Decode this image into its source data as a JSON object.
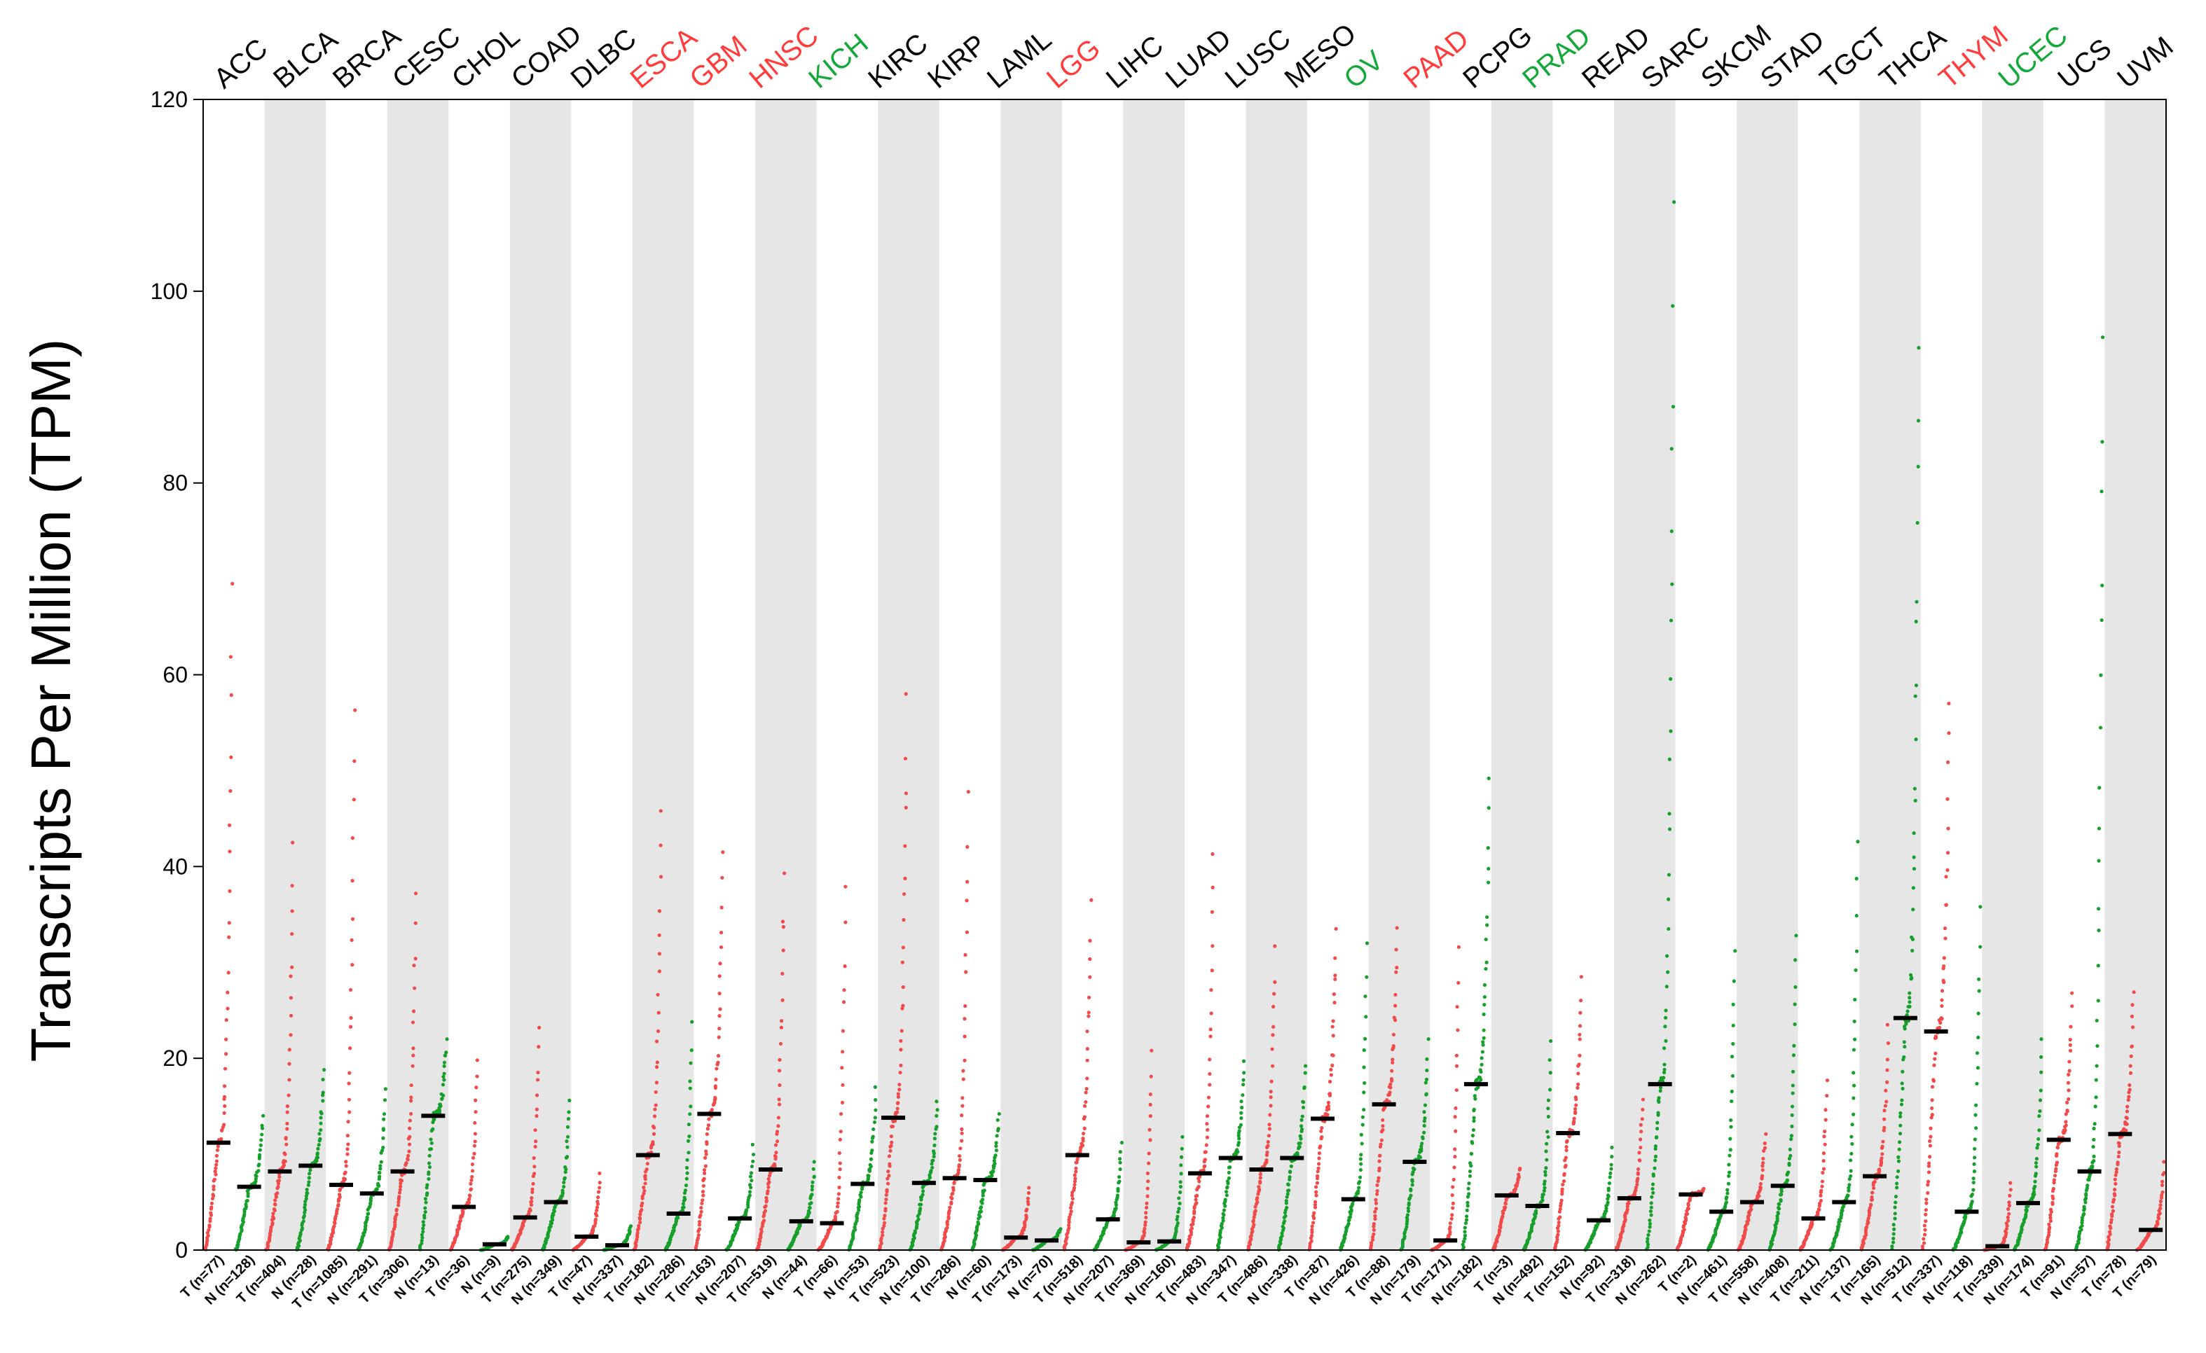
{
  "colors": {
    "tumor": "#f04a4a",
    "normal": "#16a02b",
    "shade": "#e6e6e6",
    "median": "#000000",
    "label_black": "#000000",
    "label_red": "#ff3b3b",
    "label_green": "#14a83a"
  },
  "chart_data": {
    "type": "scatter",
    "subtype": "dot plot of sample expression with median bars, tumor (red) vs normal (green)",
    "ylabel": "Transcripts Per Million (TPM)",
    "ylim": [
      0,
      120
    ],
    "yticks": [
      0,
      20,
      40,
      60,
      80,
      100,
      120
    ],
    "grid": false,
    "cancers": [
      {
        "name": "ACC",
        "color": "black"
      },
      {
        "name": "BLCA",
        "color": "black"
      },
      {
        "name": "BRCA",
        "color": "black"
      },
      {
        "name": "CESC",
        "color": "black"
      },
      {
        "name": "CHOL",
        "color": "black"
      },
      {
        "name": "COAD",
        "color": "black"
      },
      {
        "name": "DLBC",
        "color": "black"
      },
      {
        "name": "ESCA",
        "color": "red"
      },
      {
        "name": "GBM",
        "color": "red"
      },
      {
        "name": "HNSC",
        "color": "red"
      },
      {
        "name": "KICH",
        "color": "green"
      },
      {
        "name": "KIRC",
        "color": "black"
      },
      {
        "name": "KIRP",
        "color": "black"
      },
      {
        "name": "LAML",
        "color": "black"
      },
      {
        "name": "LGG",
        "color": "red"
      },
      {
        "name": "LIHC",
        "color": "black"
      },
      {
        "name": "LUAD",
        "color": "black"
      },
      {
        "name": "LUSC",
        "color": "black"
      },
      {
        "name": "MESO",
        "color": "black"
      },
      {
        "name": "OV",
        "color": "green"
      },
      {
        "name": "PAAD",
        "color": "red"
      },
      {
        "name": "PCPG",
        "color": "black"
      },
      {
        "name": "PRAD",
        "color": "green"
      },
      {
        "name": "READ",
        "color": "black"
      },
      {
        "name": "SARC",
        "color": "black"
      },
      {
        "name": "SKCM",
        "color": "black"
      },
      {
        "name": "STAD",
        "color": "black"
      },
      {
        "name": "TGCT",
        "color": "black"
      },
      {
        "name": "THCA",
        "color": "black"
      },
      {
        "name": "THYM",
        "color": "red"
      },
      {
        "name": "UCEC",
        "color": "green"
      },
      {
        "name": "UCS",
        "color": "black"
      },
      {
        "name": "UVM",
        "color": "black"
      }
    ],
    "groups": [
      {
        "label": "T (n=77)",
        "type": "T",
        "median": 11.2,
        "max": 69.5
      },
      {
        "label": "N (n=128)",
        "type": "N",
        "median": 6.6,
        "max": 14.0
      },
      {
        "label": "T (n=404)",
        "type": "T",
        "median": 8.2,
        "max": 42.5
      },
      {
        "label": "N (n=28)",
        "type": "N",
        "median": 8.8,
        "max": 18.8
      },
      {
        "label": "T (n=1085)",
        "type": "T",
        "median": 6.8,
        "max": 56.3
      },
      {
        "label": "N (n=291)",
        "type": "N",
        "median": 5.9,
        "max": 16.8
      },
      {
        "label": "T (n=306)",
        "type": "T",
        "median": 8.2,
        "max": 37.2
      },
      {
        "label": "N (n=13)",
        "type": "N",
        "median": 14.0,
        "max": 22.0
      },
      {
        "label": "T (n=36)",
        "type": "T",
        "median": 4.5,
        "max": 19.8
      },
      {
        "label": "N (n=9)",
        "type": "N",
        "median": 0.6,
        "max": 1.4
      },
      {
        "label": "T (n=275)",
        "type": "T",
        "median": 3.4,
        "max": 23.2
      },
      {
        "label": "N (n=349)",
        "type": "N",
        "median": 5.0,
        "max": 15.6
      },
      {
        "label": "T (n=47)",
        "type": "T",
        "median": 1.4,
        "max": 8.0
      },
      {
        "label": "N (n=337)",
        "type": "N",
        "median": 0.5,
        "max": 2.5
      },
      {
        "label": "T (n=182)",
        "type": "T",
        "median": 9.9,
        "max": 45.8
      },
      {
        "label": "N (n=286)",
        "type": "N",
        "median": 3.8,
        "max": 23.8
      },
      {
        "label": "T (n=163)",
        "type": "T",
        "median": 14.2,
        "max": 41.5
      },
      {
        "label": "N (n=207)",
        "type": "N",
        "median": 3.3,
        "max": 11.0
      },
      {
        "label": "T (n=519)",
        "type": "T",
        "median": 8.4,
        "max": 39.3
      },
      {
        "label": "N (n=44)",
        "type": "N",
        "median": 3.0,
        "max": 9.2
      },
      {
        "label": "T (n=66)",
        "type": "T",
        "median": 2.8,
        "max": 37.9
      },
      {
        "label": "N (n=53)",
        "type": "N",
        "median": 6.9,
        "max": 17.0
      },
      {
        "label": "T (n=523)",
        "type": "T",
        "median": 13.8,
        "max": 58.0
      },
      {
        "label": "N (n=100)",
        "type": "N",
        "median": 7.0,
        "max": 15.5
      },
      {
        "label": "T (n=286)",
        "type": "T",
        "median": 7.5,
        "max": 47.8
      },
      {
        "label": "N (n=60)",
        "type": "N",
        "median": 7.3,
        "max": 14.2
      },
      {
        "label": "T (n=173)",
        "type": "T",
        "median": 1.3,
        "max": 6.5
      },
      {
        "label": "N (n=70)",
        "type": "N",
        "median": 1.0,
        "max": 2.2
      },
      {
        "label": "T (n=518)",
        "type": "T",
        "median": 9.9,
        "max": 36.5
      },
      {
        "label": "N (n=207)",
        "type": "N",
        "median": 3.2,
        "max": 11.2
      },
      {
        "label": "T (n=369)",
        "type": "T",
        "median": 0.8,
        "max": 20.8
      },
      {
        "label": "N (n=160)",
        "type": "N",
        "median": 0.9,
        "max": 11.8
      },
      {
        "label": "T (n=483)",
        "type": "T",
        "median": 8.0,
        "max": 41.3
      },
      {
        "label": "N (n=347)",
        "type": "N",
        "median": 9.6,
        "max": 19.7
      },
      {
        "label": "T (n=486)",
        "type": "T",
        "median": 8.4,
        "max": 31.7
      },
      {
        "label": "N (n=338)",
        "type": "N",
        "median": 9.6,
        "max": 19.2
      },
      {
        "label": "T (n=87)",
        "type": "T",
        "median": 13.7,
        "max": 33.5
      },
      {
        "label": "N (n=426)",
        "type": "N",
        "median": 5.3,
        "max": 32.0
      },
      {
        "label": "T (n=88)",
        "type": "T",
        "median": 15.2,
        "max": 33.6
      },
      {
        "label": "N (n=179)",
        "type": "N",
        "median": 9.2,
        "max": 22.0
      },
      {
        "label": "T (n=171)",
        "type": "T",
        "median": 1.0,
        "max": 31.6
      },
      {
        "label": "N (n=182)",
        "type": "N",
        "median": 17.3,
        "max": 49.2
      },
      {
        "label": "T (n=3)",
        "type": "T",
        "median": 5.7,
        "max": 8.5
      },
      {
        "label": "N (n=492)",
        "type": "N",
        "median": 4.6,
        "max": 21.8
      },
      {
        "label": "T (n=152)",
        "type": "T",
        "median": 12.2,
        "max": 28.5
      },
      {
        "label": "N (n=92)",
        "type": "N",
        "median": 3.1,
        "max": 10.7
      },
      {
        "label": "T (n=318)",
        "type": "T",
        "median": 5.4,
        "max": 15.7
      },
      {
        "label": "N (n=262)",
        "type": "N",
        "median": 17.3,
        "max": 109.3
      },
      {
        "label": "T (n=2)",
        "type": "T",
        "median": 5.8,
        "max": 6.4
      },
      {
        "label": "N (n=461)",
        "type": "N",
        "median": 4.0,
        "max": 31.2
      },
      {
        "label": "T (n=558)",
        "type": "T",
        "median": 5.0,
        "max": 12.1
      },
      {
        "label": "N (n=408)",
        "type": "N",
        "median": 6.7,
        "max": 32.8
      },
      {
        "label": "T (n=211)",
        "type": "T",
        "median": 3.3,
        "max": 17.7
      },
      {
        "label": "N (n=137)",
        "type": "N",
        "median": 5.0,
        "max": 42.6
      },
      {
        "label": "T (n=165)",
        "type": "T",
        "median": 7.7,
        "max": 23.5
      },
      {
        "label": "N (n=512)",
        "type": "N",
        "median": 24.2,
        "max": 94.1
      },
      {
        "label": "T (n=337)",
        "type": "T",
        "median": 22.8,
        "max": 57.0
      },
      {
        "label": "N (n=118)",
        "type": "N",
        "median": 4.0,
        "max": 35.8
      },
      {
        "label": "T (n=339)",
        "type": "T",
        "median": 0.4,
        "max": 7.0
      },
      {
        "label": "N (n=174)",
        "type": "N",
        "median": 4.9,
        "max": 22.0
      },
      {
        "label": "T (n=91)",
        "type": "T",
        "median": 11.5,
        "max": 26.8
      },
      {
        "label": "N (n=57)",
        "type": "N",
        "median": 8.2,
        "max": 95.2
      },
      {
        "label": "T (n=78)",
        "type": "T",
        "median": 12.1,
        "max": 26.9
      },
      {
        "label": "T (n=79)",
        "type": "T",
        "median": 2.1,
        "max": 9.2
      }
    ]
  }
}
